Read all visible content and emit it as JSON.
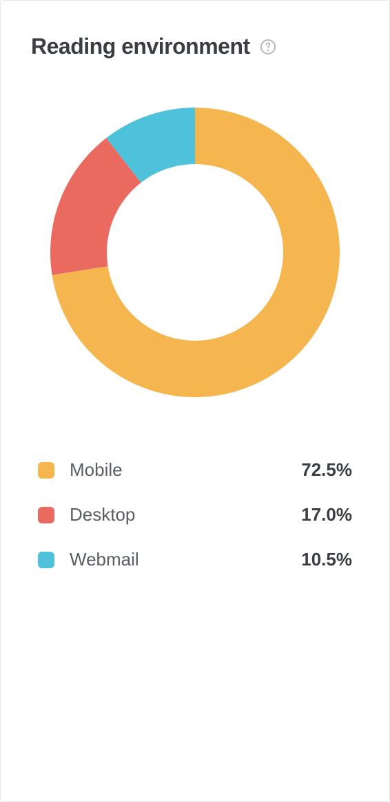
{
  "card": {
    "title": "Reading environment",
    "background_color": "#ffffff",
    "border_color": "#e8e8e8",
    "title_color": "#3a3d42",
    "title_fontsize": 32,
    "help_icon_color": "#b5b8bd"
  },
  "chart": {
    "type": "donut",
    "outer_radius": 210,
    "inner_radius": 128,
    "center_color": "#ffffff",
    "start_angle_deg": -90,
    "slices": [
      {
        "label": "Mobile",
        "value": 72.5,
        "color": "#f5b54f"
      },
      {
        "label": "Desktop",
        "value": 17.0,
        "color": "#ea6a60"
      },
      {
        "label": "Webmail",
        "value": 10.5,
        "color": "#4ec1db"
      }
    ]
  },
  "legend": {
    "label_color": "#5a5d63",
    "value_color": "#3a3d42",
    "fontsize": 26,
    "swatch_radius": 6,
    "items": [
      {
        "label": "Mobile",
        "value_text": "72.5%",
        "color": "#f5b54f"
      },
      {
        "label": "Desktop",
        "value_text": "17.0%",
        "color": "#ea6a60"
      },
      {
        "label": "Webmail",
        "value_text": "10.5%",
        "color": "#4ec1db"
      }
    ]
  }
}
